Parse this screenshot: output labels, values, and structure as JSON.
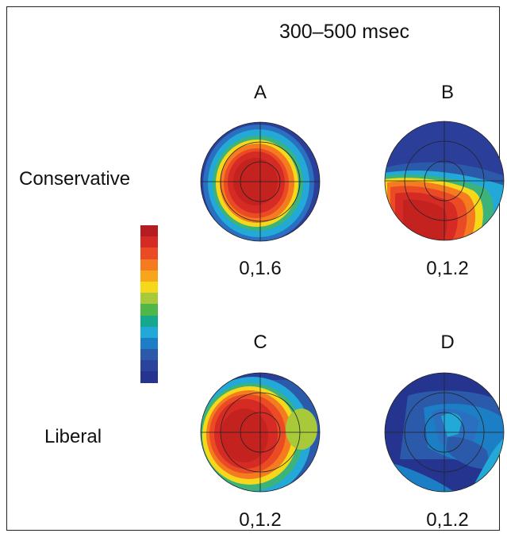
{
  "title": "300–500 msec",
  "row_labels": {
    "conservative": "Conservative",
    "liberal": "Liberal"
  },
  "panels": [
    {
      "letter": "A",
      "range": "0,1.6"
    },
    {
      "letter": "B",
      "range": "0,1.2"
    },
    {
      "letter": "C",
      "range": "0,1.2"
    },
    {
      "letter": "D",
      "range": "0,1.2"
    }
  ],
  "colorbar": [
    "#b51d22",
    "#d62a25",
    "#ea4a24",
    "#f47b20",
    "#f9a51c",
    "#f6d81a",
    "#a7c93a",
    "#4fb648",
    "#16a88e",
    "#22a9d8",
    "#1c7fc6",
    "#2b5aab",
    "#29449a",
    "#25358f"
  ]
}
